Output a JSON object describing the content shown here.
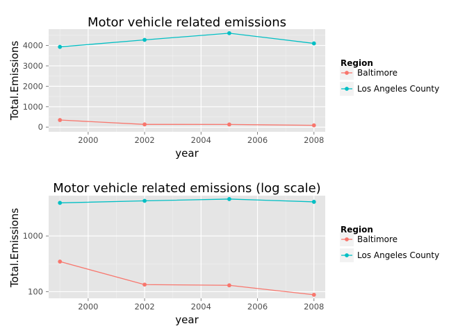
{
  "chart_data": [
    {
      "type": "line",
      "title": "Motor vehicle related emissions",
      "xlabel": "year",
      "ylabel": "Total.Emissions",
      "x": [
        1999,
        2002,
        2005,
        2008
      ],
      "xlim": [
        1998.6,
        2008.4
      ],
      "xticks": [
        2000,
        2002,
        2004,
        2006,
        2008
      ],
      "ylim": [
        -230,
        4800
      ],
      "yscale": "linear",
      "yticks": [
        0,
        1000,
        2000,
        3000,
        4000
      ],
      "grid": true,
      "legend": {
        "title": "Region",
        "position": "right"
      },
      "series": [
        {
          "name": "Baltimore",
          "color": "#F8766D",
          "values": [
            347,
            134,
            130,
            88
          ]
        },
        {
          "name": "Los Angeles County",
          "color": "#00BFC4",
          "values": [
            3931,
            4274,
            4601,
            4101
          ]
        }
      ]
    },
    {
      "type": "line",
      "title": "Motor vehicle related emissions (log scale)",
      "xlabel": "year",
      "ylabel": "Total.Emissions",
      "x": [
        1999,
        2002,
        2005,
        2008
      ],
      "xlim": [
        1998.6,
        2008.4
      ],
      "xticks": [
        2000,
        2002,
        2004,
        2006,
        2008
      ],
      "ylim": [
        76,
        5300
      ],
      "yscale": "log",
      "yticks": [
        100,
        1000
      ],
      "grid": true,
      "legend": {
        "title": "Region",
        "position": "right"
      },
      "series": [
        {
          "name": "Baltimore",
          "color": "#F8766D",
          "values": [
            347,
            134,
            130,
            88
          ]
        },
        {
          "name": "Los Angeles County",
          "color": "#00BFC4",
          "values": [
            3931,
            4274,
            4601,
            4101
          ]
        }
      ]
    }
  ]
}
